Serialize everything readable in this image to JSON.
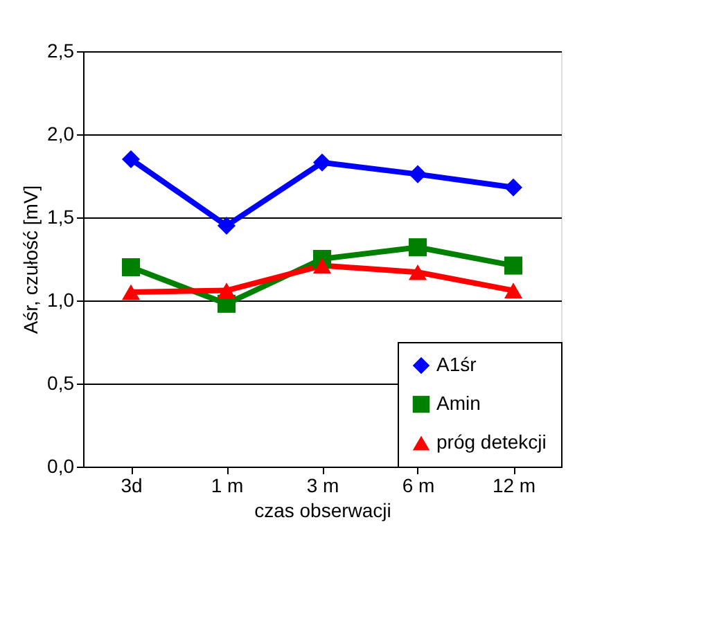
{
  "chart_data": {
    "type": "line",
    "xlabel": "czas obserwacji",
    "ylabel": "Aśr, czułość [mV]",
    "categories": [
      "3d",
      "1 m",
      "3 m",
      "6 m",
      "12 m"
    ],
    "series": [
      {
        "name": "A1śr",
        "color": "#0000ff",
        "marker": "diamond",
        "values": [
          1.85,
          1.45,
          1.83,
          1.76,
          1.68
        ]
      },
      {
        "name": "Amin",
        "color": "#008000",
        "marker": "square",
        "values": [
          1.2,
          0.98,
          1.25,
          1.32,
          1.21
        ]
      },
      {
        "name": "próg detekcji",
        "color": "#ff0000",
        "marker": "triangle",
        "values": [
          1.05,
          1.06,
          1.21,
          1.17,
          1.06
        ]
      }
    ],
    "ylim": [
      0,
      2.5
    ],
    "yticks": [
      {
        "value": 0,
        "label": "0,0"
      },
      {
        "value": 0.5,
        "label": "0,5"
      },
      {
        "value": 1,
        "label": "1,0"
      },
      {
        "value": 1.5,
        "label": "1,5"
      },
      {
        "value": 2,
        "label": "2,0"
      },
      {
        "value": 2.5,
        "label": "2,5"
      }
    ],
    "grid": "y",
    "legend": "bottom right",
    "line_style": "solid"
  }
}
